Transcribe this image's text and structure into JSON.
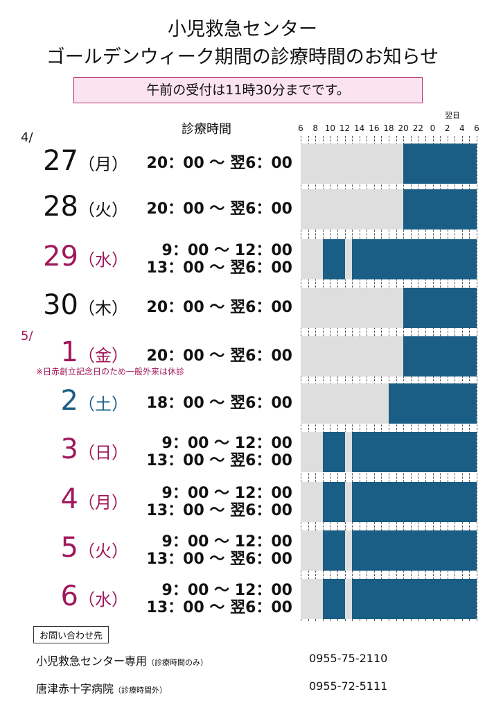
{
  "title_line1": "小児救急センター",
  "title_line2": "ゴールデンウィーク期間の診療時間のお知らせ",
  "notice": "午前の受付は11時30分までです。",
  "hours_header": "診療時間",
  "next_day_label": "翌日",
  "axis_ticks": [
    "6",
    "8",
    "10",
    "12",
    "14",
    "16",
    "18",
    "20",
    "22",
    "0",
    "2",
    "4",
    "6"
  ],
  "month_april": "4/",
  "month_may": "5/",
  "colors": {
    "bar": "#1a5e85",
    "gray": "#dedede",
    "holiday": "#a0185a",
    "saturday": "#1a5e85",
    "weekday": "#111111"
  },
  "days": [
    {
      "day": "27",
      "weekday": "（月）",
      "color": "weekday",
      "lines": [
        "20：00 ～ 翌6：00"
      ],
      "open": [
        [
          20,
          30
        ]
      ]
    },
    {
      "day": "28",
      "weekday": "（火）",
      "color": "weekday",
      "lines": [
        "20：00 ～ 翌6：00"
      ],
      "open": [
        [
          20,
          30
        ]
      ]
    },
    {
      "day": "29",
      "weekday": "（水）",
      "color": "holiday",
      "lines": [
        "9：00 ～ 12：00",
        "13：00 ～ 翌6：00"
      ],
      "open": [
        [
          9,
          12
        ],
        [
          13,
          30
        ]
      ]
    },
    {
      "day": "30",
      "weekday": "（木）",
      "color": "weekday",
      "lines": [
        "20：00 ～ 翌6：00"
      ],
      "open": [
        [
          20,
          30
        ]
      ]
    },
    {
      "day": "1",
      "weekday": "（金）",
      "color": "holiday",
      "lines": [
        "20：00 ～ 翌6：00"
      ],
      "open": [
        [
          20,
          30
        ]
      ]
    },
    {
      "day": "2",
      "weekday": "（土）",
      "color": "saturday",
      "lines": [
        "18：00 ～ 翌6：00"
      ],
      "open": [
        [
          18,
          30
        ]
      ]
    },
    {
      "day": "3",
      "weekday": "（日）",
      "color": "holiday",
      "lines": [
        "9：00 ～ 12：00",
        "13：00 ～ 翌6：00"
      ],
      "open": [
        [
          9,
          12
        ],
        [
          13,
          30
        ]
      ]
    },
    {
      "day": "4",
      "weekday": "（月）",
      "color": "holiday",
      "lines": [
        "9：00 ～ 12：00",
        "13：00 ～ 翌6：00"
      ],
      "open": [
        [
          9,
          12
        ],
        [
          13,
          30
        ]
      ]
    },
    {
      "day": "5",
      "weekday": "（火）",
      "color": "holiday",
      "lines": [
        "9：00 ～ 12：00",
        "13：00 ～ 翌6：00"
      ],
      "open": [
        [
          9,
          12
        ],
        [
          13,
          30
        ]
      ]
    },
    {
      "day": "6",
      "weekday": "（水）",
      "color": "holiday",
      "lines": [
        "9：00 ～ 12：00",
        "13：00 ～ 翌6：00"
      ],
      "open": [
        [
          9,
          12
        ],
        [
          13,
          30
        ]
      ]
    }
  ],
  "note": "※日赤創立記念日のため一般外来は休診",
  "contact": {
    "label": "お問い合わせ先",
    "rows": [
      {
        "name": "小児救急センター専用",
        "sub": "（診療時間のみ）",
        "phone": "0955-75-2110"
      },
      {
        "name": "唐津赤十字病院",
        "sub": "（診療時間外）",
        "phone": "0955-72-5111"
      }
    ]
  }
}
